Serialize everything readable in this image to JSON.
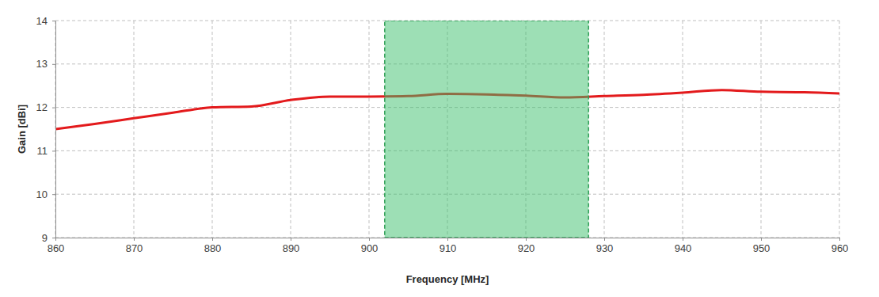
{
  "chart_data": {
    "type": "line",
    "x_label": "Frequency [MHz]",
    "y_label": "Gain [dBi]",
    "x": [
      860,
      865,
      870,
      875,
      880,
      885,
      890,
      895,
      900,
      905,
      910,
      915,
      920,
      925,
      930,
      935,
      940,
      945,
      950,
      955,
      960
    ],
    "values": [
      11.5,
      11.62,
      11.75,
      11.88,
      12.0,
      12.02,
      12.17,
      12.25,
      12.25,
      12.26,
      12.31,
      12.3,
      12.27,
      12.23,
      12.26,
      12.29,
      12.34,
      12.4,
      12.36,
      12.35,
      12.32
    ],
    "color": "#e31a1c",
    "highlight": [
      902,
      928
    ],
    "xlim": [
      860,
      960
    ],
    "xticks": [
      860,
      870,
      880,
      890,
      900,
      910,
      920,
      930,
      940,
      950,
      960
    ],
    "ylim": [
      9,
      14
    ],
    "yticks": [
      9,
      10,
      11,
      12,
      13,
      14
    ],
    "grid": true
  }
}
